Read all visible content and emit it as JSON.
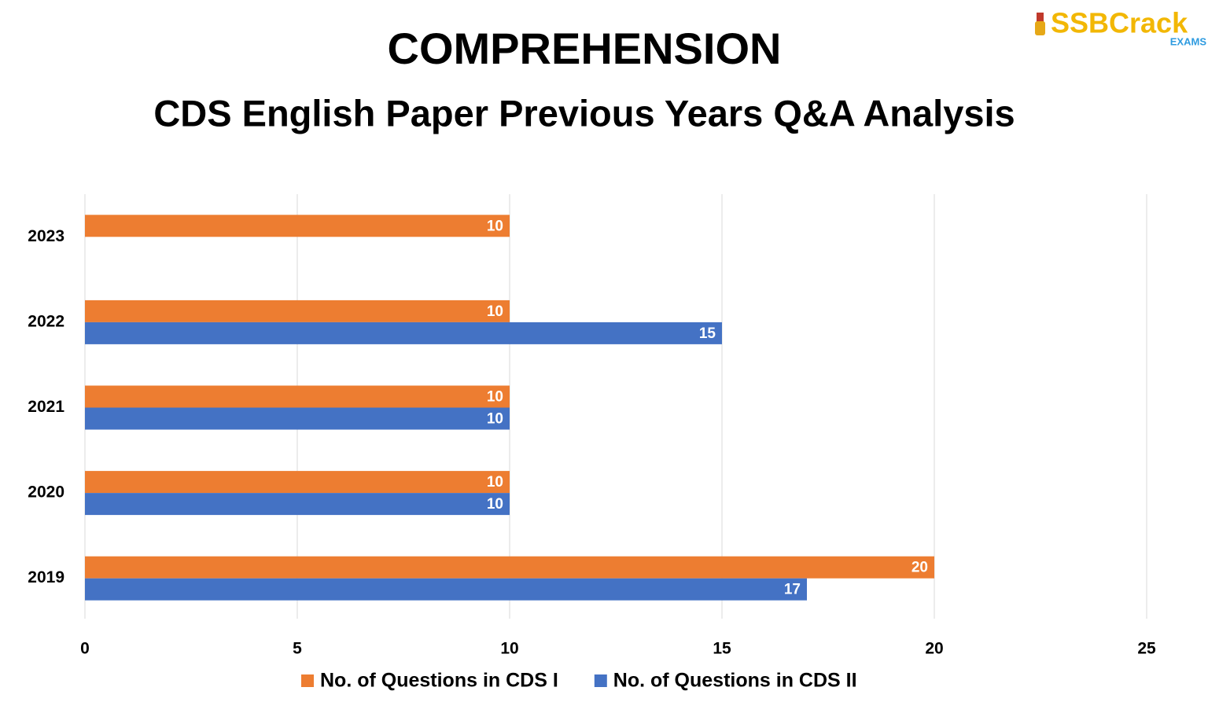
{
  "logo": {
    "text": "SSBCrack",
    "sub": "EXAMS"
  },
  "chart_data": {
    "type": "bar",
    "orientation": "horizontal",
    "title": "COMPREHENSION",
    "subtitle": "CDS English Paper Previous Years Q&A Analysis",
    "categories": [
      "2023",
      "2022",
      "2021",
      "2020",
      "2019"
    ],
    "series": [
      {
        "name": "No. of Questions in CDS I",
        "color": "#ED7D31",
        "values": [
          10,
          10,
          10,
          10,
          20
        ]
      },
      {
        "name": "No. of Questions in CDS II",
        "color": "#4472C4",
        "values": [
          null,
          15,
          10,
          10,
          17
        ]
      }
    ],
    "xlim": [
      0,
      25
    ],
    "xticks": [
      0,
      5,
      10,
      15,
      20,
      25
    ],
    "grid": true,
    "legend": "bottom"
  }
}
